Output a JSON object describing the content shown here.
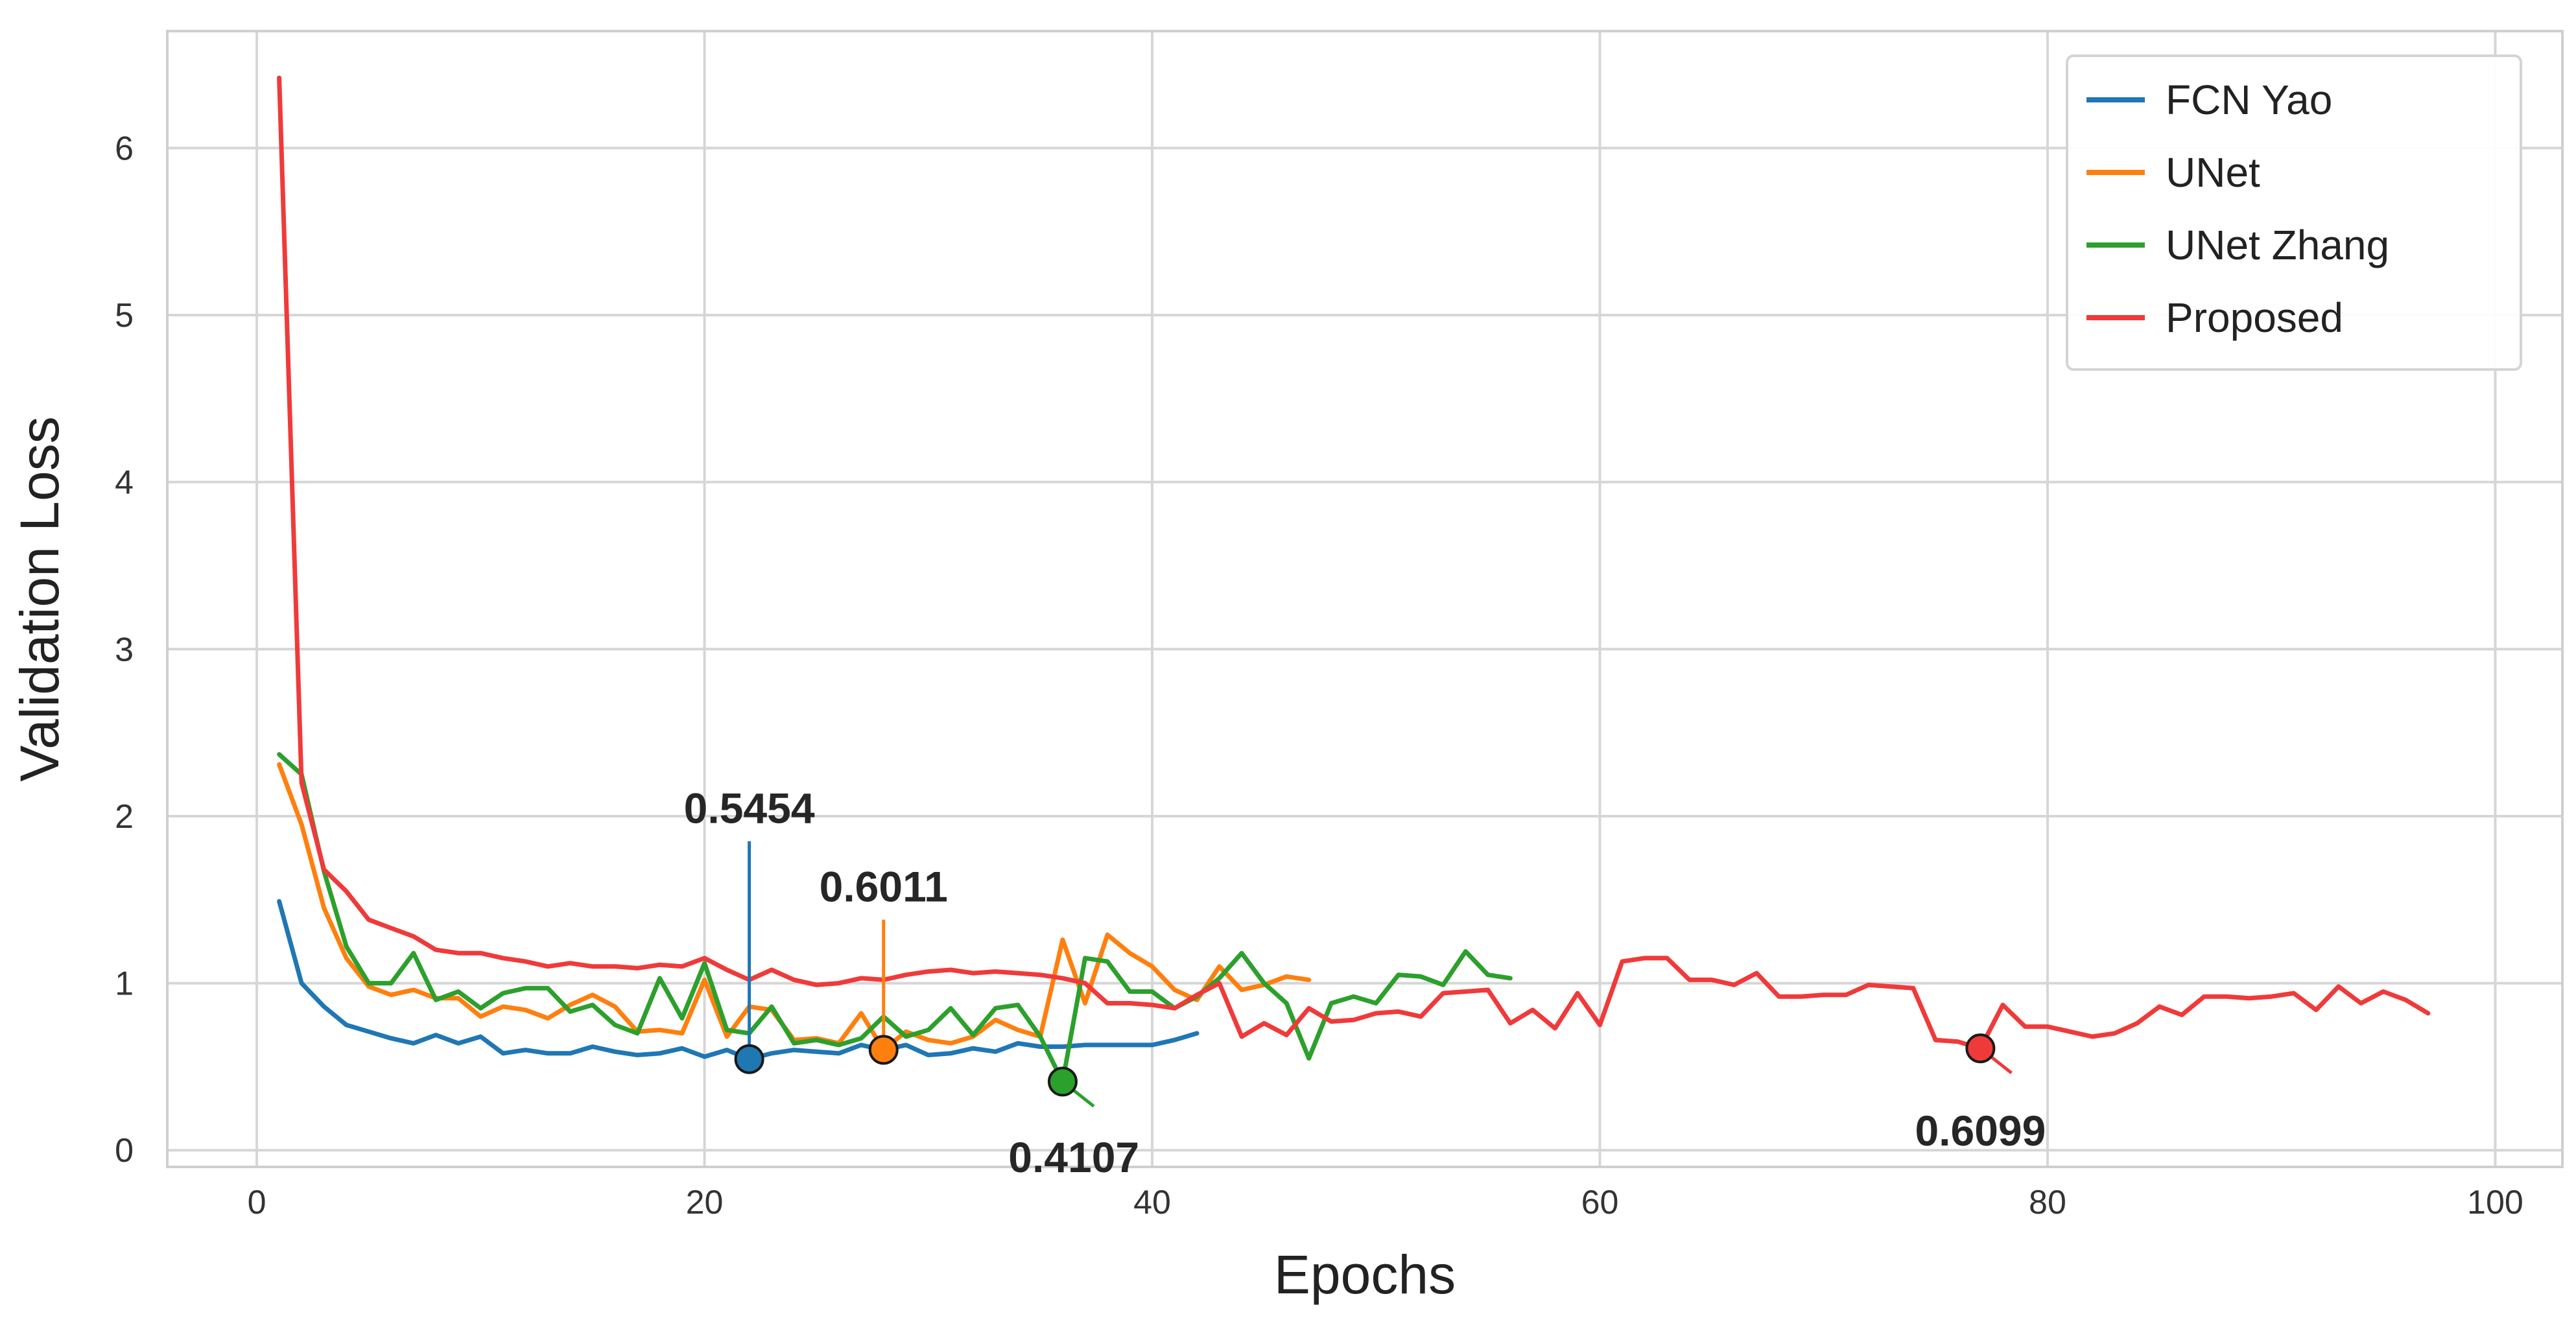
{
  "chart_data": {
    "type": "line",
    "title": "",
    "xlabel": "Epochs",
    "ylabel": "Validation Loss",
    "xlim": [
      -4,
      103
    ],
    "ylim": [
      -0.1,
      6.7
    ],
    "xticks": [
      0,
      20,
      40,
      60,
      80,
      100
    ],
    "yticks": [
      0,
      1,
      2,
      3,
      4,
      5,
      6
    ],
    "xtick_labels": [
      "0",
      "20",
      "40",
      "60",
      "80",
      "100"
    ],
    "ytick_labels": [
      "0",
      "1",
      "2",
      "3",
      "4",
      "5",
      "6"
    ],
    "grid": true,
    "legend_position": "top-right",
    "series": [
      {
        "name": "FCN Yao",
        "color": "#1f77b4",
        "x": [
          1,
          2,
          3,
          4,
          5,
          6,
          7,
          8,
          9,
          10,
          11,
          12,
          13,
          14,
          15,
          16,
          17,
          18,
          19,
          20,
          21,
          22,
          23,
          24,
          25,
          26,
          27,
          28,
          29,
          30,
          31,
          32,
          33,
          34,
          35,
          36,
          37,
          38,
          39,
          40,
          41,
          42
        ],
        "y": [
          1.49,
          1.0,
          0.86,
          0.75,
          0.71,
          0.67,
          0.64,
          0.69,
          0.64,
          0.68,
          0.58,
          0.6,
          0.58,
          0.58,
          0.62,
          0.59,
          0.57,
          0.58,
          0.61,
          0.56,
          0.6,
          0.545,
          0.58,
          0.6,
          0.59,
          0.58,
          0.63,
          0.6,
          0.63,
          0.57,
          0.58,
          0.61,
          0.59,
          0.64,
          0.62,
          0.62,
          0.63,
          0.63,
          0.63,
          0.63,
          0.66,
          0.7
        ]
      },
      {
        "name": "UNet",
        "color": "#ff7f0e",
        "x": [
          1,
          2,
          3,
          4,
          5,
          6,
          7,
          8,
          9,
          10,
          11,
          12,
          13,
          14,
          15,
          16,
          17,
          18,
          19,
          20,
          21,
          22,
          23,
          24,
          25,
          26,
          27,
          28,
          29,
          30,
          31,
          32,
          33,
          34,
          35,
          36,
          37,
          38,
          39,
          40,
          41,
          42,
          43,
          44,
          45,
          46,
          47
        ],
        "y": [
          2.31,
          1.95,
          1.45,
          1.15,
          0.98,
          0.93,
          0.96,
          0.91,
          0.91,
          0.8,
          0.86,
          0.84,
          0.79,
          0.87,
          0.93,
          0.86,
          0.71,
          0.72,
          0.7,
          1.02,
          0.68,
          0.86,
          0.84,
          0.66,
          0.67,
          0.64,
          0.82,
          0.601,
          0.71,
          0.66,
          0.64,
          0.68,
          0.78,
          0.72,
          0.68,
          1.26,
          0.88,
          1.29,
          1.18,
          1.1,
          0.96,
          0.9,
          1.1,
          0.96,
          0.99,
          1.04,
          1.02
        ]
      },
      {
        "name": "UNet Zhang",
        "color": "#2ca02c",
        "x": [
          1,
          2,
          3,
          4,
          5,
          6,
          7,
          8,
          9,
          10,
          11,
          12,
          13,
          14,
          15,
          16,
          17,
          18,
          19,
          20,
          21,
          22,
          23,
          24,
          25,
          26,
          27,
          28,
          29,
          30,
          31,
          32,
          33,
          34,
          35,
          36,
          37,
          38,
          39,
          40,
          41,
          42,
          43,
          44,
          45,
          46,
          47,
          48,
          49,
          50,
          51,
          52,
          53,
          54,
          55,
          56
        ],
        "y": [
          2.37,
          2.25,
          1.67,
          1.22,
          1.0,
          1.0,
          1.18,
          0.9,
          0.95,
          0.85,
          0.94,
          0.97,
          0.97,
          0.83,
          0.87,
          0.75,
          0.7,
          1.03,
          0.79,
          1.12,
          0.72,
          0.7,
          0.86,
          0.64,
          0.66,
          0.63,
          0.67,
          0.8,
          0.68,
          0.72,
          0.85,
          0.69,
          0.85,
          0.87,
          0.68,
          0.41,
          1.15,
          1.13,
          0.95,
          0.95,
          0.85,
          0.92,
          1.03,
          1.18,
          1.0,
          0.88,
          0.55,
          0.88,
          0.92,
          0.88,
          1.05,
          1.04,
          0.99,
          1.19,
          1.05,
          1.03
        ]
      },
      {
        "name": "Proposed",
        "color": "#f03a3a",
        "x": [
          1,
          2,
          3,
          4,
          5,
          6,
          7,
          8,
          9,
          10,
          11,
          12,
          13,
          14,
          15,
          16,
          17,
          18,
          19,
          20,
          21,
          22,
          23,
          24,
          25,
          26,
          27,
          28,
          29,
          30,
          31,
          32,
          33,
          34,
          35,
          36,
          37,
          38,
          39,
          40,
          41,
          42,
          43,
          44,
          45,
          46,
          47,
          48,
          49,
          50,
          51,
          52,
          53,
          54,
          55,
          56,
          57,
          58,
          59,
          60,
          61,
          62,
          63,
          64,
          65,
          66,
          67,
          68,
          69,
          70,
          71,
          72,
          73,
          74,
          75,
          76,
          77,
          78,
          79,
          80,
          81,
          82,
          83,
          84,
          85,
          86,
          87,
          88,
          89,
          90,
          91,
          92,
          93,
          94,
          95,
          96,
          97
        ],
        "y": [
          6.42,
          2.2,
          1.68,
          1.55,
          1.38,
          1.33,
          1.28,
          1.2,
          1.18,
          1.18,
          1.15,
          1.13,
          1.1,
          1.12,
          1.1,
          1.1,
          1.09,
          1.11,
          1.1,
          1.15,
          1.08,
          1.02,
          1.08,
          1.02,
          0.99,
          1.0,
          1.03,
          1.02,
          1.05,
          1.07,
          1.08,
          1.06,
          1.07,
          1.06,
          1.05,
          1.03,
          1.0,
          0.88,
          0.88,
          0.87,
          0.85,
          0.93,
          1.0,
          0.68,
          0.76,
          0.69,
          0.85,
          0.77,
          0.78,
          0.82,
          0.83,
          0.8,
          0.94,
          0.95,
          0.96,
          0.76,
          0.84,
          0.73,
          0.94,
          0.75,
          1.13,
          1.15,
          1.15,
          1.02,
          1.02,
          0.99,
          1.06,
          0.92,
          0.92,
          0.93,
          0.93,
          0.99,
          0.98,
          0.97,
          0.66,
          0.65,
          0.61,
          0.87,
          0.74,
          0.74,
          0.71,
          0.68,
          0.7,
          0.76,
          0.86,
          0.81,
          0.92,
          0.92,
          0.91,
          0.92,
          0.94,
          0.84,
          0.98,
          0.88,
          0.95,
          0.9,
          0.82
        ]
      }
    ],
    "annotations": [
      {
        "text": "0.5454",
        "series": "FCN Yao",
        "x": 22,
        "y": 0.5454,
        "label_x": 22,
        "label_y": 1.85,
        "color": "#1f77b4"
      },
      {
        "text": "0.6011",
        "series": "UNet",
        "x": 28,
        "y": 0.6011,
        "label_x": 28,
        "label_y": 1.38,
        "color": "#ff7f0e"
      },
      {
        "text": "0.4107",
        "series": "UNet Zhang",
        "x": 36,
        "y": 0.4107,
        "label_x": 36.5,
        "label_y": 0.07,
        "color": "#2ca02c"
      },
      {
        "text": "0.6099",
        "series": "Proposed",
        "x": 77,
        "y": 0.6099,
        "label_x": 77,
        "label_y": 0.23,
        "color": "#f03a3a"
      }
    ]
  }
}
